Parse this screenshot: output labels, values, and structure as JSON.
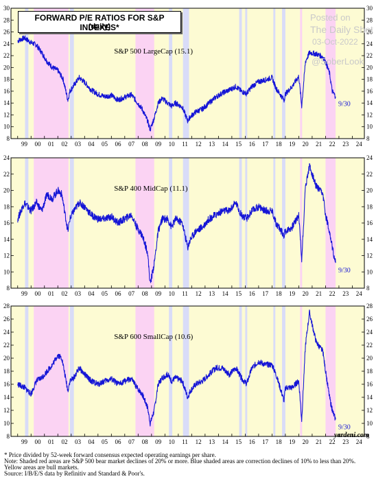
{
  "title": {
    "line1": "FORWARD P/E RATIOS FOR S&P INDEXES*",
    "line2": "(daily)"
  },
  "watermark": {
    "line1": "Posted on",
    "line2": "The Daily Shot",
    "line3": "03-Oct-2022",
    "line4": "@SoberLook"
  },
  "credit": "yardeni.com",
  "footnotes": [
    "*  Price divided by 52-week forward consensus expected operating earnings per share.",
    "Note: Shaded red areas are S&P 500 bear market declines of 20% or more.  Blue shaded areas are correction declines of 10% to less than 20%.",
    "Yellow areas are bull markets.",
    "Source: I/B/E/S data by Refinitiv and Standard & Poor's."
  ],
  "colors": {
    "line": "#1515d6",
    "bull": "#fdfbd3",
    "bear": "#fbd3f3",
    "correction": "#d9dcf8",
    "axis": "#000000"
  },
  "chart_data": [
    {
      "type": "line",
      "label": "S&P 500 LargeCap (15.1)",
      "end_label": "9/30",
      "x_ticks": [
        "99",
        "00",
        "01",
        "02",
        "03",
        "04",
        "05",
        "06",
        "07",
        "08",
        "09",
        "10",
        "11",
        "12",
        "13",
        "14",
        "15",
        "16",
        "17",
        "18",
        "19",
        "20",
        "21",
        "22",
        "23",
        "24"
      ],
      "ylim": [
        8,
        30
      ],
      "y_ticks": [
        8,
        10,
        12,
        14,
        16,
        18,
        20,
        22,
        24,
        26,
        28,
        30
      ],
      "x": [
        1999.0,
        1999.5,
        2000.0,
        2000.4,
        2000.8,
        2001.2,
        2001.6,
        2002.0,
        2002.4,
        2002.75,
        2002.9,
        2003.2,
        2003.6,
        2004.0,
        2004.5,
        2005.0,
        2005.5,
        2006.0,
        2006.5,
        2007.0,
        2007.5,
        2007.9,
        2008.3,
        2008.7,
        2008.9,
        2009.2,
        2009.5,
        2009.8,
        2010.2,
        2010.5,
        2010.8,
        2011.3,
        2011.7,
        2011.9,
        2012.3,
        2012.8,
        2013.3,
        2013.8,
        2014.3,
        2014.8,
        2015.3,
        2015.7,
        2016.1,
        2016.5,
        2017.0,
        2017.5,
        2018.0,
        2018.3,
        2018.9,
        2019.0,
        2019.5,
        2020.0,
        2020.22,
        2020.5,
        2020.8,
        2021.3,
        2021.8,
        2022.0,
        2022.3,
        2022.5,
        2022.75
      ],
      "values": [
        24.5,
        25.0,
        24.2,
        23.8,
        22.5,
        21.0,
        20.0,
        19.5,
        18.0,
        14.5,
        16.0,
        17.0,
        18.3,
        17.5,
        16.2,
        15.5,
        15.1,
        15.3,
        14.5,
        15.0,
        15.4,
        14.2,
        13.0,
        11.0,
        9.5,
        11.5,
        14.0,
        14.8,
        14.0,
        13.5,
        14.0,
        13.3,
        11.0,
        11.7,
        12.5,
        13.0,
        14.0,
        15.0,
        15.7,
        16.2,
        16.8,
        16.0,
        15.6,
        16.8,
        17.6,
        17.9,
        18.3,
        16.5,
        14.5,
        15.5,
        16.8,
        18.5,
        13.5,
        21.0,
        22.5,
        22.3,
        21.8,
        21.0,
        19.0,
        16.0,
        15.1
      ]
    },
    {
      "type": "line",
      "label": "S&P 400 MidCap (11.1)",
      "end_label": "9/30",
      "x_ticks": [
        "99",
        "00",
        "01",
        "02",
        "03",
        "04",
        "05",
        "06",
        "07",
        "08",
        "09",
        "10",
        "11",
        "12",
        "13",
        "14",
        "15",
        "16",
        "17",
        "18",
        "19",
        "20",
        "21",
        "22",
        "23",
        "24"
      ],
      "ylim": [
        8,
        24
      ],
      "y_ticks": [
        8,
        10,
        12,
        14,
        16,
        18,
        20,
        22,
        24
      ],
      "x": [
        1999.0,
        1999.5,
        2000.0,
        2000.4,
        2000.8,
        2001.2,
        2001.6,
        2002.0,
        2002.3,
        2002.75,
        2002.9,
        2003.2,
        2003.6,
        2004.0,
        2004.5,
        2005.0,
        2005.5,
        2006.0,
        2006.5,
        2007.0,
        2007.5,
        2007.9,
        2008.3,
        2008.7,
        2008.9,
        2009.2,
        2009.5,
        2009.8,
        2010.2,
        2010.5,
        2010.8,
        2011.3,
        2011.7,
        2011.9,
        2012.3,
        2012.8,
        2013.3,
        2013.8,
        2014.3,
        2014.8,
        2015.3,
        2015.7,
        2016.1,
        2016.5,
        2017.0,
        2017.5,
        2018.0,
        2018.3,
        2018.9,
        2019.0,
        2019.5,
        2020.0,
        2020.22,
        2020.5,
        2020.8,
        2021.3,
        2021.8,
        2022.0,
        2022.3,
        2022.5,
        2022.75
      ],
      "values": [
        16.5,
        18.5,
        17.5,
        18.5,
        17.5,
        19.5,
        19.0,
        20.0,
        19.5,
        15.0,
        16.5,
        17.5,
        18.5,
        18.0,
        17.0,
        16.5,
        16.5,
        16.8,
        16.0,
        16.5,
        17.0,
        15.5,
        14.5,
        12.5,
        8.5,
        11.0,
        15.0,
        16.5,
        16.5,
        15.5,
        16.5,
        16.0,
        13.0,
        14.0,
        15.0,
        15.5,
        16.5,
        17.0,
        17.5,
        17.5,
        18.5,
        17.0,
        16.5,
        17.5,
        18.0,
        17.5,
        17.5,
        16.0,
        14.5,
        15.0,
        15.5,
        17.0,
        11.5,
        20.5,
        23.0,
        20.5,
        19.5,
        17.0,
        15.0,
        13.0,
        11.1
      ]
    },
    {
      "type": "line",
      "label": "S&P 600 SmallCap (10.6)",
      "end_label": "9/30",
      "x_ticks": [
        "99",
        "00",
        "01",
        "02",
        "03",
        "04",
        "05",
        "06",
        "07",
        "08",
        "09",
        "10",
        "11",
        "12",
        "13",
        "14",
        "15",
        "16",
        "17",
        "18",
        "19",
        "20",
        "21",
        "22",
        "23",
        "24"
      ],
      "ylim": [
        8,
        28
      ],
      "y_ticks": [
        8,
        10,
        12,
        14,
        16,
        18,
        20,
        22,
        24,
        26,
        28
      ],
      "x": [
        1999.0,
        1999.5,
        2000.0,
        2000.4,
        2000.8,
        2001.2,
        2001.6,
        2002.0,
        2002.3,
        2002.75,
        2002.9,
        2003.2,
        2003.6,
        2004.0,
        2004.5,
        2005.0,
        2005.5,
        2006.0,
        2006.5,
        2007.0,
        2007.5,
        2007.9,
        2008.3,
        2008.7,
        2008.9,
        2009.2,
        2009.5,
        2009.8,
        2010.2,
        2010.5,
        2010.8,
        2011.3,
        2011.7,
        2011.9,
        2012.3,
        2012.8,
        2013.3,
        2013.8,
        2014.3,
        2014.8,
        2015.3,
        2015.7,
        2016.1,
        2016.5,
        2017.0,
        2017.5,
        2018.0,
        2018.3,
        2018.9,
        2019.0,
        2019.5,
        2020.0,
        2020.22,
        2020.5,
        2020.8,
        2021.3,
        2021.8,
        2022.0,
        2022.3,
        2022.5,
        2022.75
      ],
      "values": [
        16.0,
        15.5,
        14.5,
        16.5,
        17.0,
        18.0,
        19.0,
        20.5,
        20.0,
        15.0,
        16.5,
        17.0,
        18.5,
        17.5,
        16.5,
        16.0,
        16.5,
        16.8,
        16.0,
        16.5,
        16.8,
        15.5,
        14.5,
        12.5,
        10.0,
        12.0,
        16.0,
        17.0,
        17.5,
        16.5,
        17.0,
        16.5,
        14.0,
        15.0,
        16.0,
        16.5,
        17.5,
        18.5,
        18.5,
        17.5,
        18.5,
        17.0,
        16.0,
        18.5,
        19.5,
        19.0,
        19.0,
        17.5,
        13.5,
        15.5,
        15.5,
        16.5,
        10.5,
        22.0,
        27.0,
        22.5,
        21.0,
        18.0,
        14.0,
        12.0,
        10.6
      ]
    }
  ]
}
